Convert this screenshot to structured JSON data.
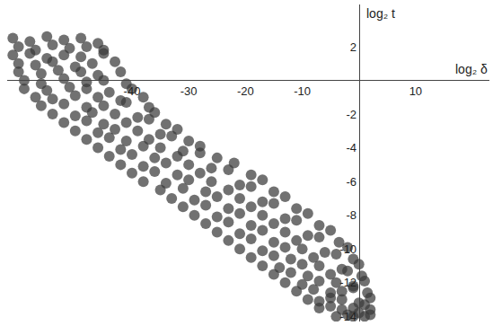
{
  "chart_data": {
    "type": "scatter",
    "x_label": "log₂ δ",
    "y_label": "log₂ t",
    "color": "#3a3a3a",
    "marker": "circle",
    "xlim": [
      -62,
      23
    ],
    "ylim": [
      -14.3,
      4.5
    ],
    "xticks": [
      -40,
      -30,
      -20,
      -10,
      10
    ],
    "yticks": [
      2,
      -2,
      -4,
      -6,
      -8,
      -10,
      -12,
      -14
    ],
    "x": [
      -61,
      -58,
      -55,
      -52,
      -49,
      -46,
      -60,
      -57,
      -54,
      -51,
      -48,
      -45,
      -61,
      -58,
      -55,
      -52,
      -49,
      -45,
      -60,
      -57,
      -54,
      -50,
      -47,
      -43,
      -60,
      -56,
      -53,
      -49,
      -46,
      -42,
      -59,
      -56,
      -52,
      -48,
      -45,
      -41,
      -59,
      -55,
      -51,
      -48,
      -44,
      -40,
      -57,
      -54,
      -50,
      -46,
      -42,
      -38,
      -56,
      -52,
      -48,
      -45,
      -41,
      -37,
      -54,
      -50,
      -47,
      -43,
      -39,
      -36,
      -52,
      -48,
      -45,
      -41,
      -37,
      -34,
      -50,
      -46,
      -43,
      -39,
      -35,
      -32,
      -48,
      -44,
      -41,
      -37,
      -33,
      -30,
      -46,
      -42,
      -38,
      -35,
      -31,
      -28,
      -44,
      -40,
      -36,
      -32,
      -28,
      -25,
      -42,
      -38,
      -34,
      -30,
      -26,
      -22,
      -40,
      -36,
      -32,
      -28,
      -23,
      -19,
      -38,
      -34,
      -30,
      -26,
      -21,
      -17,
      -35,
      -31,
      -27,
      -23,
      -19,
      -15,
      -33,
      -29,
      -25,
      -21,
      -17,
      -13,
      -31,
      -27,
      -23,
      -19,
      -15,
      -11,
      -29,
      -25,
      -21,
      -17,
      -13,
      -9,
      -27,
      -23,
      -19,
      -15,
      -11,
      -7,
      -25,
      -21,
      -17,
      -13,
      -9,
      -5,
      -23,
      -19,
      -15,
      -11,
      -7,
      -3.5,
      -21,
      -17,
      -13,
      -10,
      -6,
      -2,
      -19,
      -15,
      -12,
      -8,
      -4,
      -1,
      -17,
      -14,
      -10,
      -7,
      -3,
      0,
      -15,
      -12,
      -9,
      -5,
      -2,
      0.5,
      -13,
      -10,
      -7,
      -4,
      -1,
      1,
      -11,
      -8,
      -5,
      -3,
      -1,
      1.5,
      -9,
      -7,
      -5,
      -3,
      0,
      2,
      -7,
      -5,
      -3,
      -1,
      1,
      2,
      -4,
      -2,
      -1,
      0,
      1,
      2
    ],
    "y": [
      2.5,
      2.3,
      2.6,
      2.4,
      2.5,
      2.2,
      2.0,
      1.8,
      2.1,
      1.9,
      2.0,
      1.8,
      1.5,
      1.6,
      1.3,
      1.5,
      1.4,
      1.6,
      1.0,
      0.9,
      1.1,
      0.8,
      1.0,
      1.1,
      0.5,
      0.4,
      0.6,
      0.5,
      0.3,
      0.5,
      0.0,
      -0.2,
      0.1,
      -0.1,
      0.0,
      -0.2,
      -0.5,
      -0.6,
      -0.4,
      -0.5,
      -0.7,
      -0.5,
      -1.0,
      -1.1,
      -0.9,
      -1.0,
      -1.2,
      -1.0,
      -1.5,
      -1.4,
      -1.6,
      -1.5,
      -1.3,
      -1.6,
      -2.0,
      -2.1,
      -1.9,
      -2.0,
      -2.2,
      -1.9,
      -2.5,
      -2.4,
      -2.6,
      -2.5,
      -2.3,
      -2.6,
      -3.0,
      -3.1,
      -2.9,
      -3.0,
      -3.2,
      -2.9,
      -3.5,
      -3.4,
      -3.6,
      -3.5,
      -3.3,
      -3.6,
      -4.0,
      -4.1,
      -3.9,
      -4.0,
      -4.2,
      -3.9,
      -4.5,
      -4.4,
      -4.6,
      -4.5,
      -4.3,
      -4.6,
      -5.0,
      -5.1,
      -4.9,
      -5.0,
      -5.2,
      -4.9,
      -5.5,
      -5.4,
      -5.6,
      -5.5,
      -5.3,
      -5.6,
      -6.0,
      -6.1,
      -5.9,
      -6.0,
      -6.2,
      -5.9,
      -6.5,
      -6.4,
      -6.6,
      -6.5,
      -6.3,
      -6.6,
      -7.0,
      -7.1,
      -6.9,
      -7.0,
      -7.2,
      -6.9,
      -7.5,
      -7.4,
      -7.6,
      -7.5,
      -7.3,
      -7.6,
      -8.0,
      -8.1,
      -7.9,
      -8.0,
      -8.2,
      -7.9,
      -8.5,
      -8.4,
      -8.6,
      -8.5,
      -8.3,
      -8.6,
      -9.0,
      -9.1,
      -8.9,
      -9.0,
      -9.2,
      -8.9,
      -9.5,
      -9.4,
      -9.6,
      -9.5,
      -9.3,
      -9.6,
      -10.0,
      -10.1,
      -9.9,
      -10.0,
      -10.2,
      -9.9,
      -10.5,
      -10.4,
      -10.6,
      -10.5,
      -10.3,
      -10.6,
      -11.0,
      -11.1,
      -10.9,
      -11.0,
      -11.2,
      -10.9,
      -11.5,
      -11.4,
      -11.6,
      -11.5,
      -11.3,
      -11.6,
      -12.0,
      -12.1,
      -11.9,
      -12.0,
      -12.2,
      -11.9,
      -12.5,
      -12.4,
      -12.6,
      -12.5,
      -12.3,
      -12.6,
      -13.0,
      -13.1,
      -12.9,
      -13.0,
      -13.2,
      -12.9,
      -13.5,
      -13.4,
      -13.6,
      -13.5,
      -13.3,
      -13.6,
      -14.0,
      -13.9,
      -14.0,
      -13.8,
      -14.0,
      -13.9
    ]
  }
}
